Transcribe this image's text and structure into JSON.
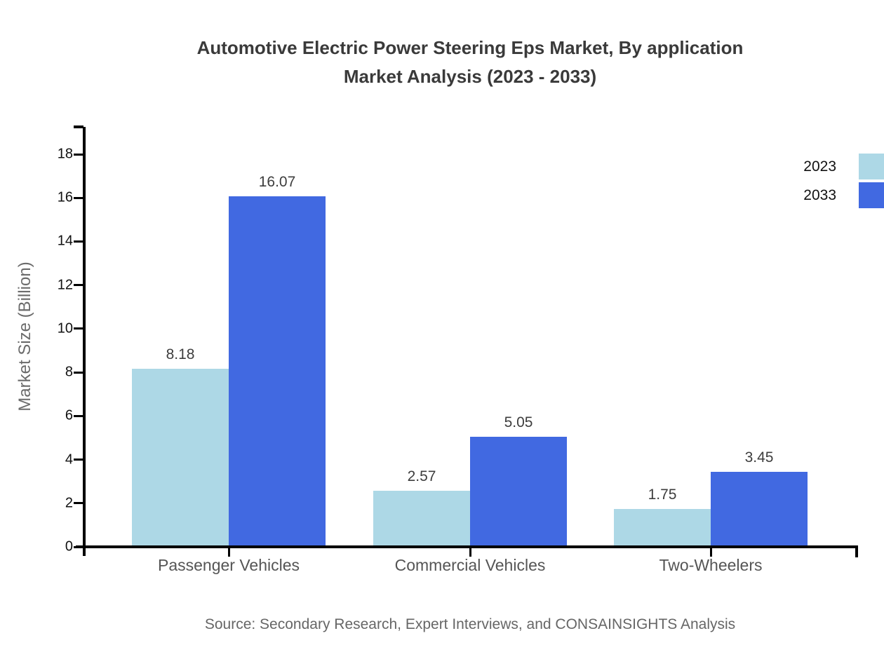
{
  "title": {
    "line1": "Automotive Electric Power Steering Eps Market, By application",
    "line2": "Market Analysis (2023 - 2033)"
  },
  "source": "Source: Secondary Research, Expert Interviews, and CONSAINSIGHTS Analysis",
  "colors": {
    "series_2023": "#ADD8E6",
    "series_2033": "#4169E1",
    "axis": "#000000",
    "title_text": "#3A3A3A",
    "muted_text": "#666666"
  },
  "chart_data": {
    "type": "bar",
    "title": "Automotive Electric Power Steering Eps Market, By application Market Analysis (2023 - 2033)",
    "categories": [
      "Passenger Vehicles",
      "Commercial Vehicles",
      "Two-Wheelers"
    ],
    "series": [
      {
        "name": "2023",
        "color": "#ADD8E6",
        "values": [
          8.18,
          2.57,
          1.75
        ]
      },
      {
        "name": "2033",
        "color": "#4169E1",
        "values": [
          16.07,
          5.05,
          3.45
        ]
      }
    ],
    "xlabel": "",
    "ylabel": "Market Size (Billion)",
    "ylim": [
      0,
      18
    ],
    "ytick_step": 2,
    "yticks": [
      0,
      2,
      4,
      6,
      8,
      10,
      12,
      14,
      16,
      18
    ],
    "grid": false,
    "legend_position": "top-right",
    "value_labels": true
  }
}
